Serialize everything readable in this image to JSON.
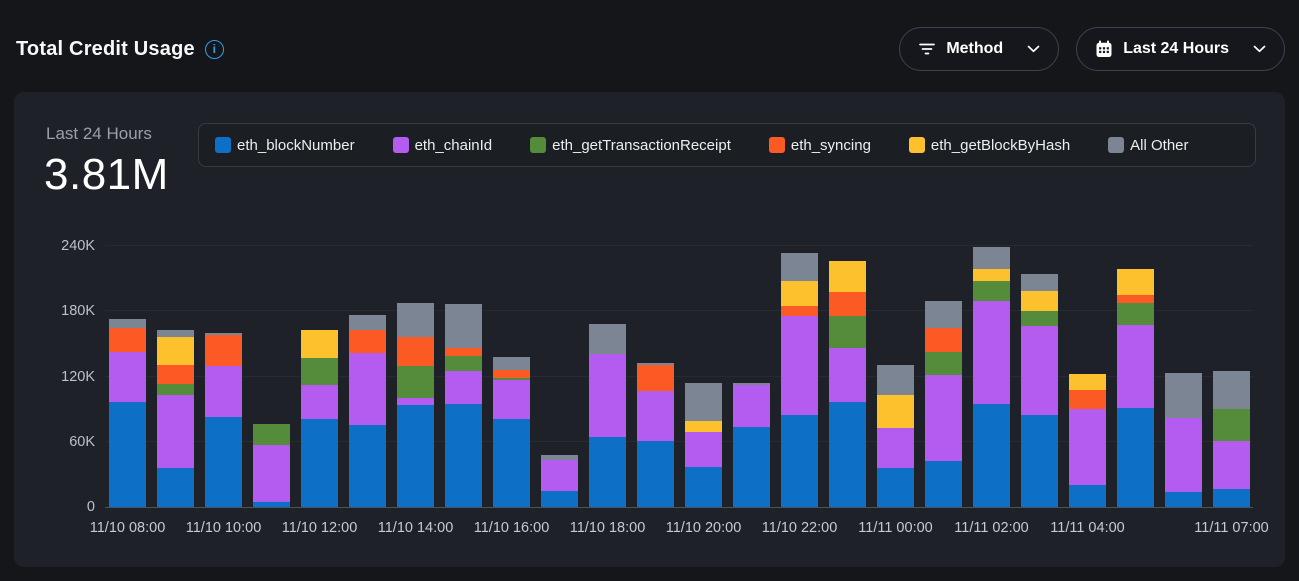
{
  "header": {
    "title": "Total Credit Usage",
    "method_filter_label": "Method",
    "time_range_label": "Last 24 Hours"
  },
  "summary": {
    "period_label": "Last 24 Hours",
    "total_value": "3.81M"
  },
  "colors": {
    "accent_blue": "#2aa0e8",
    "card_bg": "#1e2127",
    "page_bg": "#141619"
  },
  "chart_data": {
    "type": "bar",
    "stacked": true,
    "title": "Total Credit Usage",
    "legend_position": "top",
    "grid": true,
    "ylim_k": [
      0,
      240
    ],
    "values_unit": "thousands of credits",
    "y_ticks": [
      {
        "value_k": 0,
        "label": "0"
      },
      {
        "value_k": 60,
        "label": "60K"
      },
      {
        "value_k": 120,
        "label": "120K"
      },
      {
        "value_k": 180,
        "label": "180K"
      },
      {
        "value_k": 240,
        "label": "240K"
      }
    ],
    "series": [
      {
        "name": "eth_blockNumber",
        "color": "#0e6fc7"
      },
      {
        "name": "eth_chainId",
        "color": "#b45cf0"
      },
      {
        "name": "eth_getTransactionReceipt",
        "color": "#548c3b"
      },
      {
        "name": "eth_syncing",
        "color": "#fb5a25"
      },
      {
        "name": "eth_getBlockByHash",
        "color": "#fdc12d"
      },
      {
        "name": "All Other",
        "color": "#7c8593"
      }
    ],
    "bars": [
      {
        "tick": "11/10 08:00",
        "stack_k": [
          97,
          46,
          0,
          22,
          0,
          8
        ]
      },
      {
        "tick": "",
        "stack_k": [
          36,
          67,
          10,
          18,
          25,
          7
        ]
      },
      {
        "tick": "11/10 10:00",
        "stack_k": [
          83,
          47,
          0,
          28,
          0,
          2
        ]
      },
      {
        "tick": "",
        "stack_k": [
          5,
          52,
          19,
          0,
          0,
          0
        ]
      },
      {
        "tick": "11/10 12:00",
        "stack_k": [
          81,
          31,
          25,
          0,
          26,
          0
        ]
      },
      {
        "tick": "",
        "stack_k": [
          75,
          67,
          0,
          21,
          0,
          14
        ]
      },
      {
        "tick": "11/10 14:00",
        "stack_k": [
          94,
          6,
          30,
          26,
          0,
          32
        ]
      },
      {
        "tick": "",
        "stack_k": [
          95,
          30,
          14,
          7,
          0,
          41
        ]
      },
      {
        "tick": "11/10 16:00",
        "stack_k": [
          81,
          36,
          2,
          7,
          0,
          12
        ]
      },
      {
        "tick": "",
        "stack_k": [
          15,
          28,
          0,
          0,
          0,
          5
        ]
      },
      {
        "tick": "11/10 18:00",
        "stack_k": [
          64,
          77,
          0,
          0,
          0,
          27
        ]
      },
      {
        "tick": "",
        "stack_k": [
          61,
          46,
          0,
          24,
          0,
          1
        ]
      },
      {
        "tick": "11/10 20:00",
        "stack_k": [
          37,
          32,
          0,
          0,
          10,
          35
        ]
      },
      {
        "tick": "",
        "stack_k": [
          74,
          38,
          0,
          0,
          0,
          2
        ]
      },
      {
        "tick": "11/10 22:00",
        "stack_k": [
          85,
          91,
          0,
          9,
          23,
          26
        ]
      },
      {
        "tick": "",
        "stack_k": [
          97,
          49,
          30,
          22,
          28,
          0
        ]
      },
      {
        "tick": "11/11 00:00",
        "stack_k": [
          36,
          37,
          0,
          0,
          30,
          28
        ]
      },
      {
        "tick": "",
        "stack_k": [
          42,
          79,
          22,
          22,
          0,
          24
        ]
      },
      {
        "tick": "11/11 02:00",
        "stack_k": [
          95,
          94,
          19,
          0,
          11,
          20
        ]
      },
      {
        "tick": "",
        "stack_k": [
          85,
          81,
          14,
          0,
          19,
          15
        ]
      },
      {
        "tick": "11/11 04:00",
        "stack_k": [
          20,
          70,
          0,
          18,
          14,
          0
        ]
      },
      {
        "tick": "",
        "stack_k": [
          91,
          76,
          21,
          7,
          24,
          0
        ]
      },
      {
        "tick": "",
        "stack_k": [
          14,
          68,
          0,
          0,
          0,
          41
        ]
      },
      {
        "tick": "11/11 07:00",
        "stack_k": [
          17,
          44,
          29,
          0,
          0,
          35
        ]
      }
    ]
  }
}
